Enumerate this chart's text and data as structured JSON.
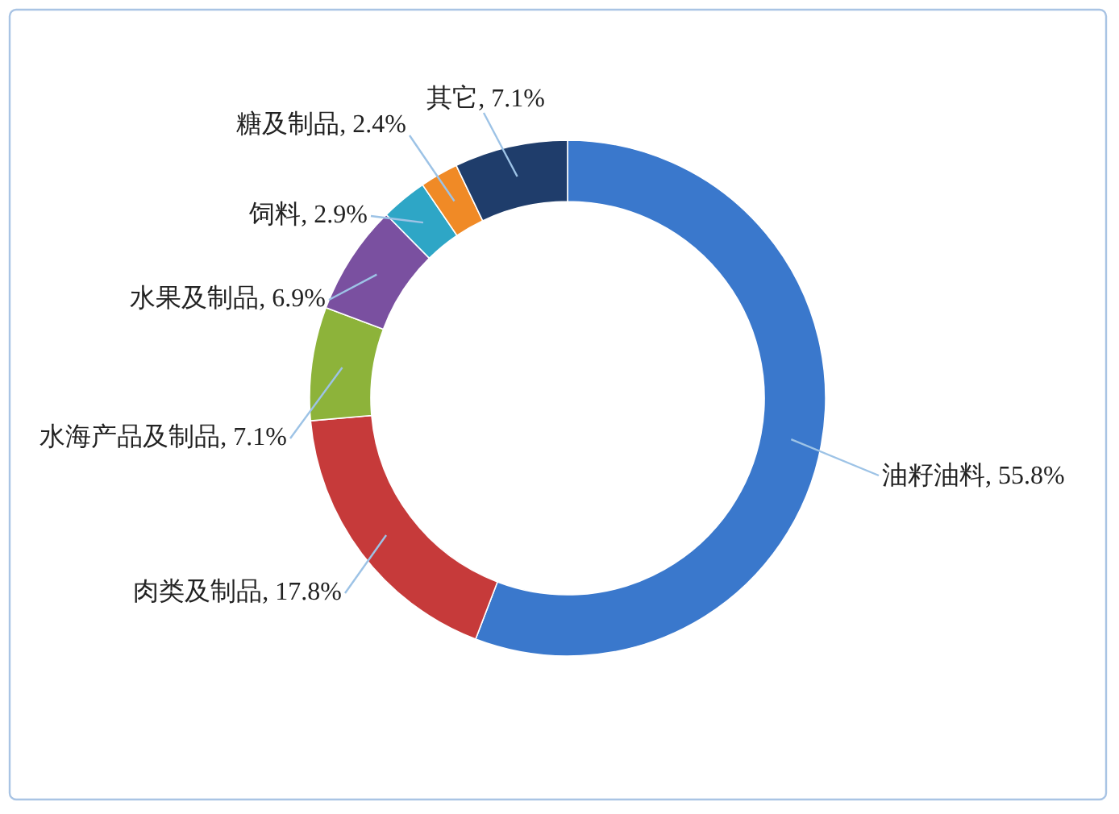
{
  "chart_data": {
    "type": "donut",
    "categories": [
      "油籽油料",
      "肉类及制品",
      "水海产品及制品",
      "水果及制品",
      "饲料",
      "糖及制品",
      "其它"
    ],
    "values": [
      55.8,
      17.8,
      7.1,
      6.9,
      2.9,
      2.4,
      7.1
    ],
    "value_labels": [
      "55.8%",
      "17.8%",
      "7.1%",
      "6.9%",
      "2.9%",
      "2.4%",
      "7.1%"
    ],
    "colors": [
      "#3a78cc",
      "#c63a3a",
      "#8db33a",
      "#7a50a0",
      "#2ea6c6",
      "#f08a26",
      "#1f3d6b"
    ]
  }
}
